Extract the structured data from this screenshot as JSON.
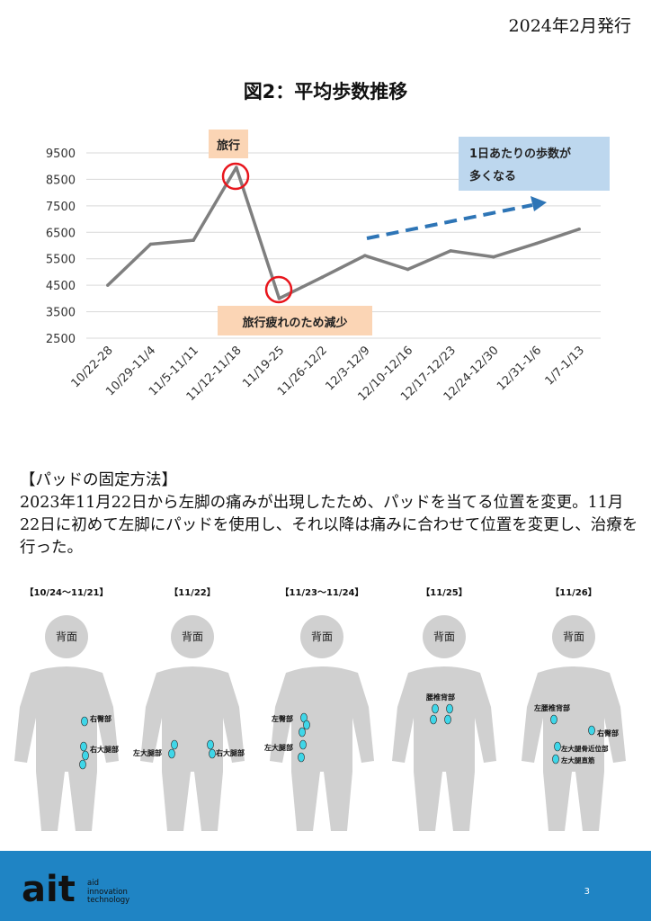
{
  "header": {
    "issue_date": "2024年2月発行"
  },
  "chart_data": {
    "type": "line",
    "title": "図2：平均歩数推移",
    "categories": [
      "10/22-28",
      "10/29-11/4",
      "11/5-11/11",
      "11/12-11/18",
      "11/19-25",
      "11/26-12/2",
      "12/3-12/9",
      "12/10-12/16",
      "12/17-12/23",
      "12/24-12/30",
      "12/31-1/6",
      "1/7-1/13"
    ],
    "series": [
      {
        "values": [
          4500,
          6050,
          6200,
          8950,
          4000,
          4800,
          5620,
          5100,
          5800,
          5570,
          6080,
          6620
        ],
        "color": "#7f7f7f"
      }
    ],
    "yticks": [
      2500,
      3500,
      4500,
      5500,
      6500,
      7500,
      8500,
      9500
    ],
    "ylim": [
      2500,
      9500
    ],
    "grid": true,
    "annotations": {
      "travel": "旅行",
      "fatigue": "旅行疲れのため減少",
      "trend": "1日あたりの歩数が多くなる"
    },
    "colors": {
      "label_box": "#fbd5b5",
      "trend_box": "#bdd7ee",
      "highlight": "#e8161d",
      "arrow": "#2e75b6"
    }
  },
  "section": {
    "heading": "【パッドの固定方法】",
    "body": "2023年11月22日から左脚の痛みが出現したため、パッドを当てる位置を変更。11月22日に初めて左脚にパッドを使用し、それ以降は痛みに合わせて位置を変更し、治療を行った。"
  },
  "figures": [
    {
      "date": "【10/24～11/21】",
      "back": "背面",
      "labels": [
        "右臀部",
        "右大腿部"
      ]
    },
    {
      "date": "【11/22】",
      "back": "背面",
      "labels": [
        "左大腿部",
        "右大腿部"
      ]
    },
    {
      "date": "【11/23～11/24】",
      "back": "背面",
      "labels": [
        "左臀部",
        "左大腿部"
      ]
    },
    {
      "date": "【11/25】",
      "back": "背面",
      "labels": [
        "腰椎背部"
      ]
    },
    {
      "date": "【11/26】",
      "back": "背面",
      "labels": [
        "左腰椎背部",
        "右臀部",
        "左大腿骨近位部",
        "左大腿直筋"
      ]
    }
  ],
  "footer": {
    "logo": "ait",
    "logo_sub": [
      "aid",
      "innovation",
      "technology"
    ],
    "page_number": "3"
  }
}
